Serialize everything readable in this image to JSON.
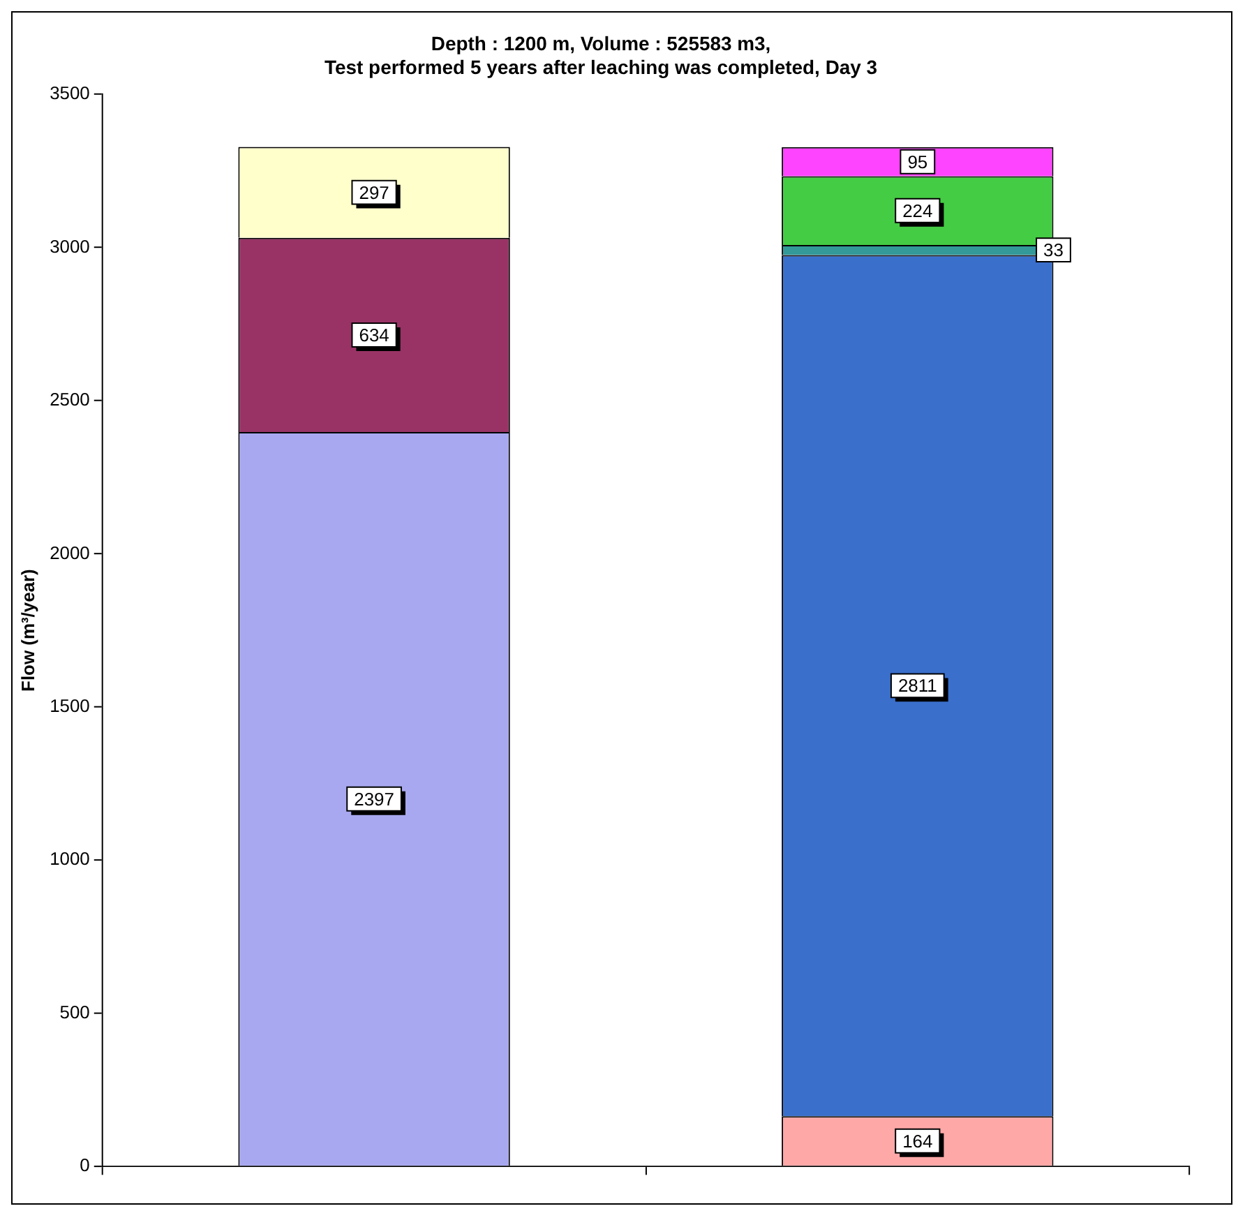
{
  "chart_data": {
    "type": "bar",
    "title": "Depth : 1200 m, Volume : 525583 m3,\nTest performed 5 years after leaching was completed, Day 3",
    "ylabel": "Flow (m³/year)",
    "categories": [
      null,
      null
    ],
    "stacked": true,
    "data_labels": true,
    "legend": false,
    "grid": false,
    "ylim": [
      0,
      3500
    ],
    "yticks": [
      0,
      500,
      1000,
      1500,
      2000,
      2500,
      3000,
      3500
    ],
    "series": [
      {
        "color": "#a8a8f0",
        "values": [
          2397,
          null
        ]
      },
      {
        "color": "#993366",
        "values": [
          634,
          null
        ]
      },
      {
        "color": "#ffffcc",
        "values": [
          297,
          null
        ]
      },
      {
        "color": "#ffa8a8",
        "values": [
          null,
          164
        ]
      },
      {
        "color": "#3a6fcc",
        "values": [
          null,
          2811
        ]
      },
      {
        "color": "#339999",
        "values": [
          null,
          33
        ]
      },
      {
        "color": "#44cc44",
        "values": [
          null,
          224
        ]
      },
      {
        "color": "#ff44ff",
        "values": [
          null,
          95
        ]
      }
    ]
  }
}
